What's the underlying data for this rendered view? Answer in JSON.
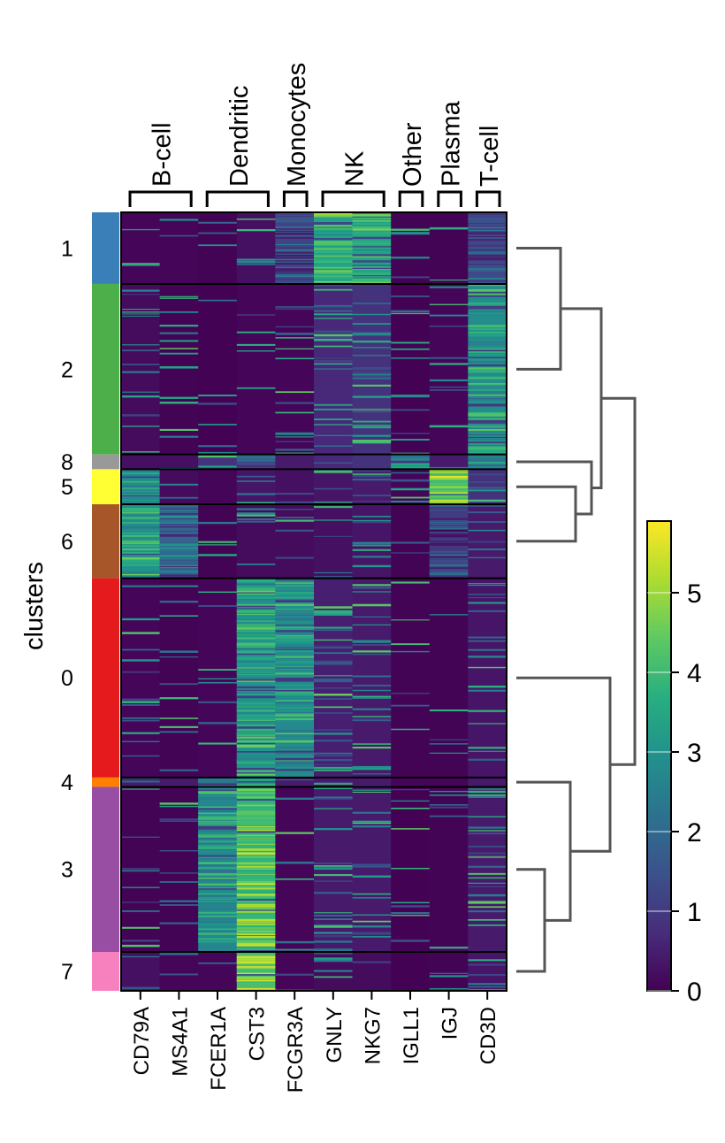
{
  "chart_data": {
    "type": "heatmap",
    "ylabel": "clusters",
    "genes": [
      "CD79A",
      "MS4A1",
      "FCER1A",
      "CST3",
      "FCGR3A",
      "GNLY",
      "NKG7",
      "IGLL1",
      "IGJ",
      "CD3D"
    ],
    "gene_groups": [
      {
        "label": "B-cell",
        "genes": [
          "CD79A",
          "MS4A1"
        ]
      },
      {
        "label": "Dendritic",
        "genes": [
          "FCER1A",
          "CST3"
        ]
      },
      {
        "label": "Monocytes",
        "genes": [
          "FCGR3A"
        ]
      },
      {
        "label": "NK",
        "genes": [
          "GNLY",
          "NKG7"
        ]
      },
      {
        "label": "Other",
        "genes": [
          "IGLL1"
        ]
      },
      {
        "label": "Plasma",
        "genes": [
          "IGJ"
        ]
      },
      {
        "label": "T-cell",
        "genes": [
          "CD3D"
        ]
      }
    ],
    "cluster_order": [
      "1",
      "2",
      "8",
      "5",
      "6",
      "0",
      "4",
      "3",
      "7"
    ],
    "cluster_colors": {
      "1": "#3a7fb8",
      "2": "#4daf4a",
      "8": "#999999",
      "5": "#ffff33",
      "6": "#a65628",
      "0": "#e41a1c",
      "4": "#ff7f00",
      "3": "#984ea3",
      "7": "#f781bf"
    },
    "cluster_cell_fraction": {
      "1": 0.092,
      "2": 0.219,
      "8": 0.019,
      "5": 0.045,
      "6": 0.095,
      "0": 0.256,
      "4": 0.012,
      "3": 0.212,
      "7": 0.05
    },
    "mean_expression": {
      "1": [
        0.1,
        0.1,
        0.05,
        0.3,
        1.4,
        4.0,
        4.0,
        0.05,
        0.05,
        1.6
      ],
      "2": [
        0.2,
        0.05,
        0.02,
        0.1,
        0.1,
        0.8,
        1.0,
        0.02,
        0.1,
        3.4
      ],
      "8": [
        0.3,
        0.3,
        1.0,
        1.5,
        0.5,
        0.8,
        1.0,
        2.6,
        0.5,
        2.6
      ],
      "5": [
        3.2,
        0.2,
        0.1,
        0.4,
        0.3,
        0.4,
        0.5,
        0.1,
        4.8,
        1.0
      ],
      "6": [
        3.5,
        2.2,
        0.05,
        0.2,
        0.2,
        0.3,
        0.4,
        0.05,
        1.2,
        0.5
      ],
      "0": [
        0.1,
        0.05,
        0.1,
        3.6,
        3.3,
        0.6,
        0.5,
        0.05,
        0.05,
        0.4
      ],
      "4": [
        0.5,
        0.5,
        2.5,
        3.5,
        0.5,
        0.5,
        0.5,
        0.1,
        0.1,
        0.5
      ],
      "3": [
        0.05,
        0.05,
        3.2,
        4.5,
        0.1,
        0.5,
        0.5,
        0.02,
        0.05,
        0.5
      ],
      "7": [
        0.3,
        0.1,
        0.1,
        4.9,
        0.1,
        0.2,
        0.2,
        0.02,
        0.05,
        0.4
      ]
    },
    "colorbar": {
      "colormap": "viridis",
      "vmin": 0,
      "vmax": 5.9,
      "ticks": [
        0,
        1,
        2,
        3,
        4,
        5
      ]
    },
    "dendrogram": "hierarchical clustering of clusters: ((1,2),(8,(5,6))) and (0,(4,(3,7)))"
  }
}
